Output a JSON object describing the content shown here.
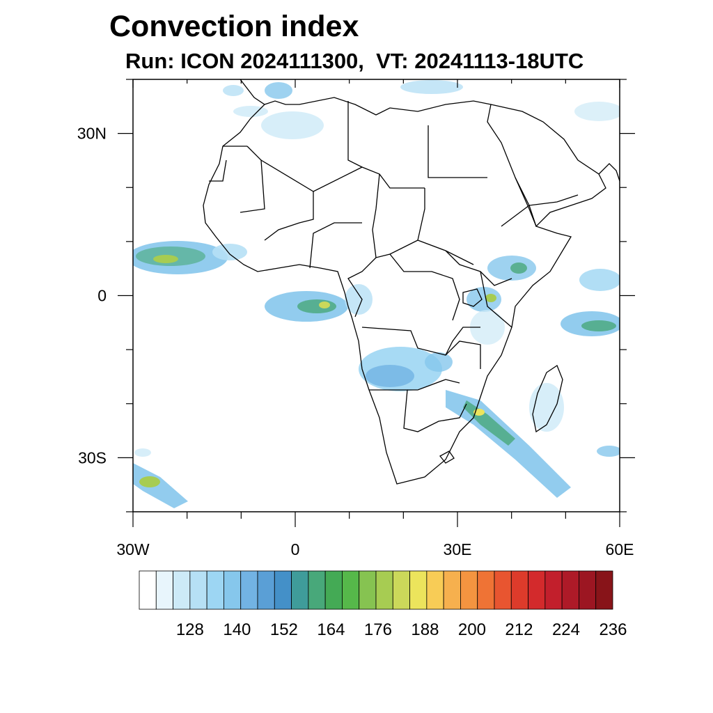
{
  "title": "Convection index",
  "subtitle": "Run: ICON 2024111300,  VT: 20241113-18UTC",
  "map": {
    "lon_range": [
      -30,
      60
    ],
    "lat_range": [
      -40,
      40
    ],
    "x_ticks": [
      {
        "lon": -30,
        "label": "30W"
      },
      {
        "lon": 0,
        "label": "0"
      },
      {
        "lon": 30,
        "label": "30E"
      },
      {
        "lon": 60,
        "label": "60E"
      }
    ],
    "y_ticks": [
      {
        "lat": 30,
        "label": "30N"
      },
      {
        "lat": 0,
        "label": "0"
      },
      {
        "lat": -30,
        "label": "30S"
      }
    ]
  },
  "colorbar": {
    "colors": [
      "#ffffff",
      "#e8f5fc",
      "#cdeaf7",
      "#b6e0f5",
      "#9dd6f3",
      "#86c7ec",
      "#72b3e4",
      "#5a9fd6",
      "#4490c8",
      "#3f9c9a",
      "#48a87a",
      "#44aa55",
      "#56b84a",
      "#86c351",
      "#a7cc52",
      "#cbd85a",
      "#ece45c",
      "#f8cc56",
      "#f6b04e",
      "#f49440",
      "#ef7335",
      "#e85530",
      "#dd3b2b",
      "#d32a2c",
      "#c21f2c",
      "#ae1a28",
      "#9c1622",
      "#881419"
    ],
    "labels": [
      "128",
      "140",
      "152",
      "164",
      "176",
      "188",
      "200",
      "212",
      "224",
      "236"
    ]
  }
}
